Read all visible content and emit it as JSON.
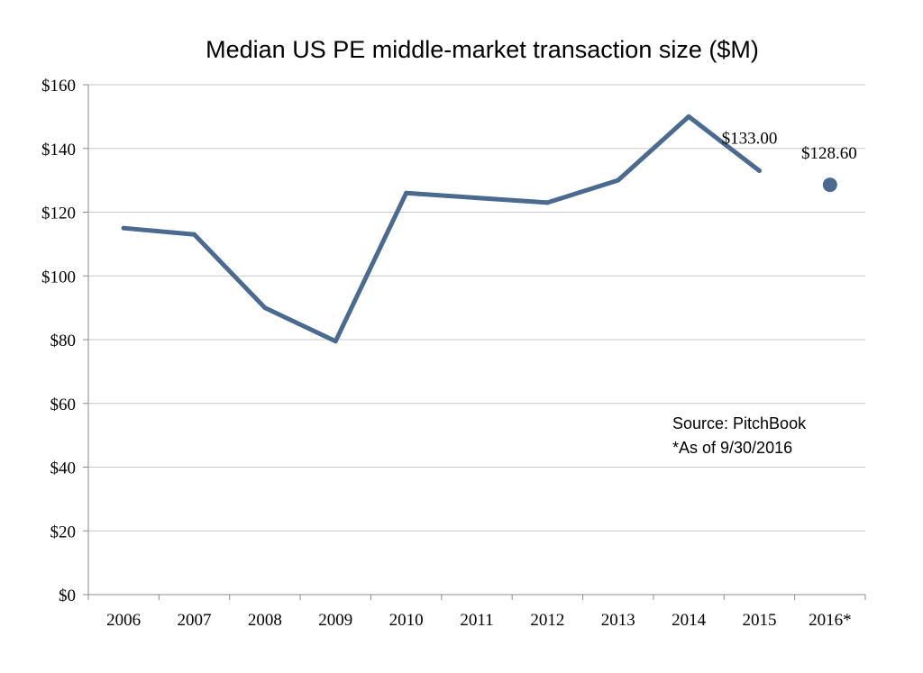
{
  "chart_data": {
    "type": "line",
    "title": "Median US PE middle-market transaction size ($M)",
    "xlabel": "",
    "ylabel": "",
    "categories": [
      "2006",
      "2007",
      "2008",
      "2009",
      "2010",
      "2011",
      "2012",
      "2013",
      "2014",
      "2015",
      "2016*"
    ],
    "y_ticks": [
      "$0",
      "$20",
      "$40",
      "$60",
      "$80",
      "$100",
      "$120",
      "$140",
      "$160"
    ],
    "ylim": [
      0,
      160
    ],
    "grid": true,
    "line_color": "#4a6a90",
    "series": [
      {
        "values": [
          115,
          113,
          90,
          79.5,
          126,
          124.5,
          123,
          130,
          150,
          133,
          null
        ]
      }
    ],
    "separate_point": {
      "category": "2016*",
      "value": 128.6
    },
    "data_labels": [
      {
        "category": "2015",
        "text": "$133.00"
      },
      {
        "category": "2016*",
        "text": "$128.60"
      }
    ],
    "annotations": [
      "Source: PitchBook",
      "*As of 9/30/2016"
    ]
  }
}
